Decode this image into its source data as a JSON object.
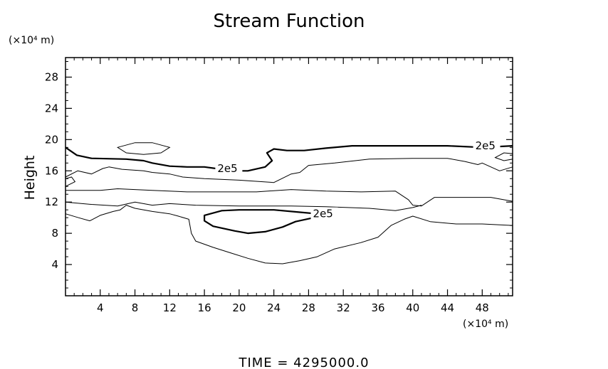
{
  "chart_data": {
    "type": "contour",
    "title": "Stream Function",
    "ylabel": "Height",
    "xlabel": "",
    "x_unit_label": "(×10⁴ m)",
    "y_unit_label": "(×10⁴ m)",
    "footer": "TIME  =  4295000.0",
    "xlim": [
      0,
      51.5
    ],
    "ylim": [
      0,
      30.5
    ],
    "x_ticks": [
      4,
      8,
      12,
      16,
      20,
      24,
      28,
      32,
      36,
      40,
      44,
      48
    ],
    "y_ticks": [
      4,
      8,
      12,
      16,
      20,
      24,
      28
    ],
    "contour_label": "2e5",
    "contours": [
      {
        "name": "upper-thick",
        "emphasis": "thick",
        "points": [
          [
            0,
            19.0
          ],
          [
            1.3,
            18.0
          ],
          [
            3,
            17.6
          ],
          [
            7,
            17.5
          ],
          [
            9,
            17.3
          ],
          [
            10,
            17.0
          ],
          [
            12,
            16.6
          ],
          [
            14,
            16.5
          ],
          [
            16,
            16.5
          ],
          [
            18,
            16.2
          ],
          [
            19,
            16.0
          ],
          [
            21,
            16.0
          ],
          [
            23,
            16.5
          ],
          [
            23.8,
            17.3
          ],
          [
            23.2,
            18.3
          ],
          [
            24,
            18.8
          ],
          [
            25.5,
            18.6
          ],
          [
            27.5,
            18.6
          ],
          [
            30,
            18.9
          ],
          [
            33,
            19.2
          ],
          [
            36,
            19.2
          ],
          [
            40,
            19.2
          ],
          [
            44,
            19.2
          ],
          [
            48,
            19.0
          ],
          [
            51.5,
            19.2
          ]
        ],
        "label_at": [
          [
            17.5,
            16.3
          ],
          [
            47.2,
            19.2
          ]
        ]
      },
      {
        "name": "mid-upper-thin",
        "emphasis": "thin",
        "points": [
          [
            0,
            15.2
          ],
          [
            1.4,
            16.0
          ],
          [
            3,
            15.6
          ],
          [
            4.3,
            16.3
          ],
          [
            5,
            16.5
          ],
          [
            6.5,
            16.2
          ],
          [
            9,
            16.0
          ],
          [
            10,
            15.8
          ],
          [
            12,
            15.6
          ],
          [
            13.5,
            15.2
          ],
          [
            16,
            15.0
          ],
          [
            20,
            14.8
          ],
          [
            24,
            14.5
          ],
          [
            26,
            15.6
          ],
          [
            27,
            15.8
          ],
          [
            28,
            16.7
          ],
          [
            31,
            17.0
          ],
          [
            35,
            17.5
          ],
          [
            40,
            17.6
          ],
          [
            44,
            17.6
          ],
          [
            46,
            17.2
          ],
          [
            47.5,
            16.8
          ],
          [
            48,
            17.0
          ],
          [
            49,
            16.5
          ],
          [
            50,
            16.0
          ],
          [
            51.5,
            16.5
          ]
        ]
      },
      {
        "name": "band-upper",
        "emphasis": "thin",
        "points": [
          [
            0,
            13.5
          ],
          [
            2,
            13.5
          ],
          [
            4,
            13.5
          ],
          [
            6,
            13.7
          ],
          [
            10,
            13.5
          ],
          [
            14,
            13.3
          ],
          [
            18,
            13.3
          ],
          [
            22,
            13.3
          ],
          [
            26,
            13.6
          ],
          [
            30,
            13.4
          ],
          [
            34,
            13.3
          ],
          [
            38,
            13.4
          ],
          [
            39.5,
            12.3
          ],
          [
            40,
            11.6
          ],
          [
            41,
            11.5
          ],
          [
            42.5,
            12.6
          ],
          [
            45,
            12.6
          ],
          [
            49,
            12.6
          ],
          [
            51.5,
            12.1
          ]
        ]
      },
      {
        "name": "band-lower",
        "emphasis": "thin",
        "points": [
          [
            0,
            12.0
          ],
          [
            3,
            11.7
          ],
          [
            6,
            11.5
          ],
          [
            8,
            12.0
          ],
          [
            10,
            11.6
          ],
          [
            12,
            11.8
          ],
          [
            15,
            11.6
          ],
          [
            20,
            11.5
          ],
          [
            26,
            11.5
          ],
          [
            30,
            11.4
          ],
          [
            35,
            11.2
          ],
          [
            38,
            10.9
          ],
          [
            40,
            11.3
          ],
          [
            41,
            11.6
          ]
        ]
      },
      {
        "name": "lower-thick-loop",
        "emphasis": "thick",
        "closed": true,
        "points": [
          [
            16,
            10.3
          ],
          [
            18,
            10.9
          ],
          [
            20,
            11.0
          ],
          [
            24,
            11.0
          ],
          [
            27,
            10.7
          ],
          [
            30,
            10.4
          ],
          [
            31,
            10.3
          ],
          [
            29,
            10.1
          ],
          [
            26.5,
            9.5
          ],
          [
            25,
            8.8
          ],
          [
            23,
            8.2
          ],
          [
            21,
            8.0
          ],
          [
            19.5,
            8.3
          ],
          [
            17,
            8.9
          ],
          [
            16,
            9.6
          ]
        ],
        "label_at": [
          [
            28.5,
            10.5
          ]
        ]
      },
      {
        "name": "lower-thin",
        "emphasis": "thin",
        "points": [
          [
            0,
            10.5
          ],
          [
            1.5,
            10.0
          ],
          [
            2.8,
            9.6
          ],
          [
            4,
            10.3
          ],
          [
            5.5,
            10.8
          ],
          [
            6.3,
            11.0
          ],
          [
            7,
            11.6
          ],
          [
            8,
            11.2
          ],
          [
            10,
            10.8
          ],
          [
            12,
            10.5
          ],
          [
            13,
            10.2
          ],
          [
            14.2,
            9.8
          ],
          [
            14.5,
            8.0
          ],
          [
            15,
            7.0
          ],
          [
            17,
            6.2
          ],
          [
            19,
            5.5
          ],
          [
            21,
            4.8
          ],
          [
            23,
            4.2
          ],
          [
            25,
            4.1
          ],
          [
            27,
            4.5
          ],
          [
            29,
            5.0
          ],
          [
            31,
            6.0
          ],
          [
            34,
            6.8
          ],
          [
            36,
            7.5
          ],
          [
            37.5,
            9.0
          ],
          [
            39,
            9.8
          ],
          [
            40,
            10.2
          ],
          [
            42,
            9.5
          ],
          [
            45,
            9.2
          ],
          [
            48,
            9.2
          ],
          [
            51.5,
            9.0
          ]
        ]
      }
    ],
    "small_closed_contours": [
      {
        "points": [
          [
            6,
            19.0
          ],
          [
            8,
            19.6
          ],
          [
            10,
            19.6
          ],
          [
            12,
            19.0
          ],
          [
            11,
            18.3
          ],
          [
            9,
            18.1
          ],
          [
            7,
            18.3
          ]
        ]
      },
      {
        "points": [
          [
            49.5,
            17.7
          ],
          [
            50.5,
            18.3
          ],
          [
            51.5,
            18.2
          ],
          [
            51.5,
            17.5
          ],
          [
            50.5,
            17.3
          ]
        ]
      },
      {
        "points": [
          [
            0,
            14.0
          ],
          [
            1.1,
            14.6
          ],
          [
            0.7,
            15.2
          ],
          [
            0,
            15.0
          ]
        ]
      }
    ],
    "grid": false,
    "legend": "none"
  }
}
